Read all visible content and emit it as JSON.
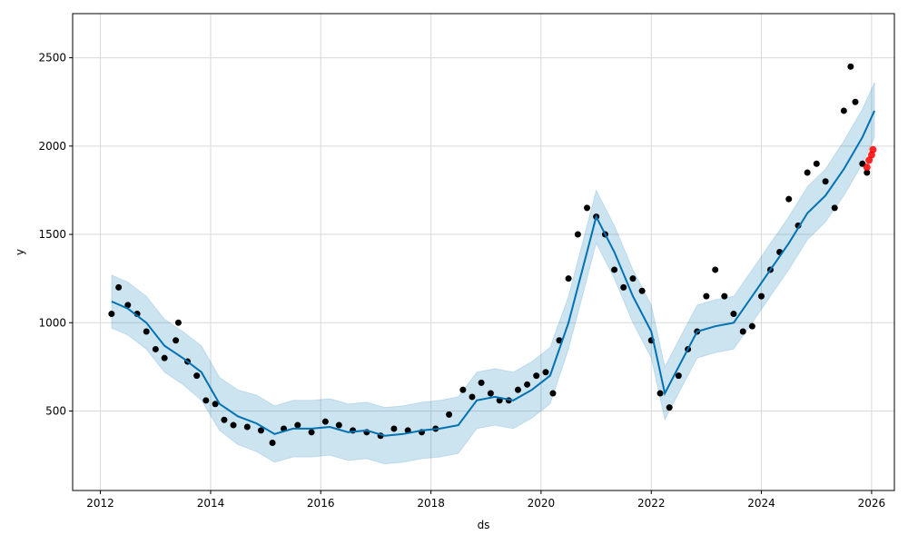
{
  "chart_data": {
    "type": "scatter",
    "title": "",
    "xlabel": "ds",
    "ylabel": "y",
    "xlim": [
      "2011-07-01",
      "2026-06-01"
    ],
    "ylim": [
      50,
      2750
    ],
    "grid": true,
    "legend": "none",
    "x_ticks": [
      "2012",
      "2014",
      "2016",
      "2018",
      "2020",
      "2022",
      "2024",
      "2026"
    ],
    "y_ticks": [
      500,
      1000,
      1500,
      2000,
      2500
    ],
    "colors": {
      "observed": "#000000",
      "forecast": "#0072b2",
      "uncertainty": "#0072b2",
      "recent_points": "#ff0000",
      "grid": "#d9d9d9"
    },
    "series": [
      {
        "role": "observed points",
        "x": [
          "2012-03-15",
          "2012-05-01",
          "2012-07-01",
          "2012-09-01",
          "2012-11-01",
          "2013-01-01",
          "2013-03-01",
          "2013-05-15",
          "2013-06-01",
          "2013-08-01",
          "2013-10-01",
          "2013-12-01",
          "2014-02-01",
          "2014-04-01",
          "2014-06-01",
          "2014-09-01",
          "2014-12-01",
          "2015-02-15",
          "2015-05-01",
          "2015-08-01",
          "2015-11-01",
          "2016-02-01",
          "2016-05-01",
          "2016-08-01",
          "2016-11-01",
          "2017-02-01",
          "2017-05-01",
          "2017-08-01",
          "2017-11-01",
          "2018-02-01",
          "2018-05-01",
          "2018-08-01",
          "2018-10-01",
          "2018-12-01",
          "2019-02-01",
          "2019-04-01",
          "2019-06-01",
          "2019-08-01",
          "2019-10-01",
          "2019-12-01",
          "2020-02-01",
          "2020-03-20",
          "2020-05-01",
          "2020-07-01",
          "2020-09-01",
          "2020-11-01",
          "2021-01-01",
          "2021-03-01",
          "2021-05-01",
          "2021-07-01",
          "2021-09-01",
          "2021-11-01",
          "2022-01-01",
          "2022-03-01",
          "2022-05-01",
          "2022-07-01",
          "2022-09-01",
          "2022-11-01",
          "2023-01-01",
          "2023-03-01",
          "2023-05-01",
          "2023-07-01",
          "2023-09-01",
          "2023-11-01",
          "2024-01-01",
          "2024-03-01",
          "2024-05-01",
          "2024-07-01",
          "2024-09-01",
          "2024-11-01",
          "2025-01-01",
          "2025-03-01",
          "2025-05-01",
          "2025-07-01",
          "2025-08-15",
          "2025-09-15",
          "2025-11-01",
          "2025-12-01"
        ],
        "y": [
          1050,
          1200,
          1100,
          1050,
          950,
          850,
          800,
          900,
          1000,
          780,
          700,
          560,
          540,
          450,
          420,
          410,
          390,
          320,
          400,
          420,
          380,
          440,
          420,
          390,
          380,
          360,
          400,
          390,
          380,
          400,
          480,
          620,
          580,
          660,
          600,
          560,
          560,
          620,
          650,
          700,
          720,
          600,
          900,
          1250,
          1500,
          1650,
          1600,
          1500,
          1300,
          1200,
          1250,
          1180,
          900,
          600,
          520,
          700,
          850,
          950,
          1150,
          1300,
          1150,
          1050,
          950,
          980,
          1150,
          1300,
          1400,
          1700,
          1550,
          1850,
          1900,
          1800,
          1650,
          2200,
          2450,
          2250,
          1900,
          1850
        ]
      },
      {
        "role": "forecast line",
        "x": [
          "2012-03-15",
          "2012-07-01",
          "2012-11-01",
          "2013-03-01",
          "2013-07-01",
          "2013-11-01",
          "2014-03-01",
          "2014-07-01",
          "2014-11-01",
          "2015-03-01",
          "2015-07-01",
          "2015-11-01",
          "2016-03-01",
          "2016-07-01",
          "2016-11-01",
          "2017-03-01",
          "2017-07-01",
          "2017-11-01",
          "2018-03-01",
          "2018-07-01",
          "2018-11-01",
          "2019-03-01",
          "2019-07-01",
          "2019-11-01",
          "2020-03-01",
          "2020-07-01",
          "2020-11-01",
          "2021-01-01",
          "2021-05-01",
          "2021-09-01",
          "2022-01-01",
          "2022-04-01",
          "2022-07-01",
          "2022-11-01",
          "2023-03-01",
          "2023-07-01",
          "2023-11-01",
          "2024-03-01",
          "2024-07-01",
          "2024-11-01",
          "2025-03-01",
          "2025-07-01",
          "2025-11-01",
          "2026-01-20"
        ],
        "y": [
          1120,
          1080,
          1000,
          870,
          800,
          720,
          540,
          470,
          430,
          370,
          400,
          400,
          410,
          380,
          390,
          360,
          370,
          390,
          400,
          420,
          560,
          580,
          560,
          620,
          700,
          1000,
          1400,
          1600,
          1400,
          1150,
          950,
          600,
          750,
          950,
          980,
          1000,
          1150,
          1300,
          1450,
          1620,
          1720,
          1870,
          2050,
          2200
        ],
        "band_lower": [
          970,
          930,
          850,
          720,
          650,
          560,
          390,
          310,
          270,
          210,
          240,
          240,
          250,
          220,
          230,
          200,
          210,
          230,
          240,
          260,
          400,
          420,
          400,
          460,
          540,
          850,
          1250,
          1450,
          1250,
          1000,
          800,
          450,
          600,
          800,
          830,
          850,
          1000,
          1150,
          1300,
          1470,
          1570,
          1720,
          1900,
          2050
        ],
        "band_upper": [
          1270,
          1230,
          1150,
          1020,
          950,
          870,
          690,
          620,
          590,
          530,
          560,
          560,
          570,
          540,
          550,
          520,
          530,
          550,
          560,
          580,
          720,
          740,
          720,
          780,
          860,
          1150,
          1550,
          1750,
          1550,
          1300,
          1100,
          750,
          900,
          1100,
          1130,
          1150,
          1300,
          1450,
          1600,
          1770,
          1870,
          2030,
          2210,
          2360
        ]
      },
      {
        "role": "recent points",
        "x": [
          "2025-12-01",
          "2025-12-15",
          "2026-01-01",
          "2026-01-10"
        ],
        "y": [
          1880,
          1920,
          1950,
          1980
        ]
      }
    ]
  }
}
